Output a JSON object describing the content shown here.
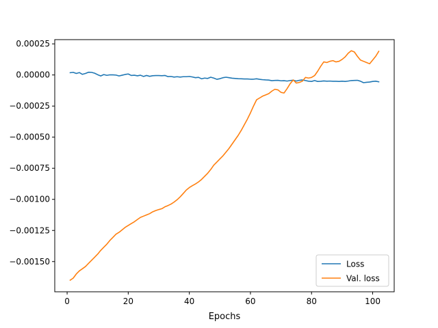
{
  "chart_data": {
    "type": "line",
    "title": "",
    "xlabel": "Epochs",
    "ylabel": "",
    "xlim": [
      -4.05,
      107.05
    ],
    "ylim": [
      -0.001743,
      0.000284
    ],
    "xticks": [
      0,
      20,
      40,
      60,
      80,
      100
    ],
    "yticks": [
      0.00025,
      0.0,
      -0.00025,
      -0.0005,
      -0.00075,
      -0.001,
      -0.00125,
      -0.0015
    ],
    "ytick_labels": [
      "0.00025",
      "0.00000",
      "−0.00025",
      "−0.00050",
      "−0.00075",
      "−0.00100",
      "−0.00125",
      "−0.00150"
    ],
    "xtick_labels": [
      "0",
      "20",
      "40",
      "60",
      "80",
      "100"
    ],
    "grid": false,
    "legend_position": "lower-right",
    "colors": {
      "loss": "#1f77b4",
      "val_loss": "#ff7f0e",
      "axes": "#000000",
      "background": "#ffffff"
    },
    "series": [
      {
        "name": "Loss",
        "color": "#1f77b4",
        "x": [
          1,
          2,
          3,
          4,
          5,
          6,
          7,
          8,
          9,
          10,
          11,
          12,
          13,
          14,
          15,
          16,
          17,
          18,
          19,
          20,
          21,
          22,
          23,
          24,
          25,
          26,
          27,
          28,
          29,
          30,
          31,
          32,
          33,
          34,
          35,
          36,
          37,
          38,
          39,
          40,
          41,
          42,
          43,
          44,
          45,
          46,
          47,
          48,
          49,
          50,
          51,
          52,
          53,
          54,
          55,
          56,
          57,
          58,
          59,
          60,
          61,
          62,
          63,
          64,
          65,
          66,
          67,
          68,
          69,
          70,
          71,
          72,
          73,
          74,
          75,
          76,
          77,
          78,
          79,
          80,
          81,
          82,
          83,
          84,
          85,
          86,
          87,
          88,
          89,
          90,
          91,
          92,
          93,
          94,
          95,
          96,
          97,
          98,
          99,
          100,
          101,
          102
        ],
        "y": [
          1.8e-05,
          2.1e-05,
          1.2e-05,
          1.9e-05,
          5e-06,
          1.2e-05,
          2.2e-05,
          2.1e-05,
          1.4e-05,
          2e-06,
          -8e-06,
          3e-06,
          -3e-06,
          1e-06,
          1e-06,
          -1e-06,
          -8e-06,
          -2e-06,
          4e-06,
          8e-06,
          -4e-06,
          -2e-06,
          -7e-06,
          -2e-06,
          -1.2e-05,
          -4e-06,
          -1.1e-05,
          -6e-06,
          -5e-06,
          -5e-06,
          -6e-06,
          -4e-06,
          -1.3e-05,
          -1.2e-05,
          -1.7e-05,
          -1.4e-05,
          -1.7e-05,
          -1.4e-05,
          -1.4e-05,
          -1.2e-05,
          -1.6e-05,
          -2.2e-05,
          -1.9e-05,
          -3.1e-05,
          -2.5e-05,
          -2.8e-05,
          -1.8e-05,
          -2.5e-05,
          -3.5e-05,
          -3e-05,
          -2.2e-05,
          -1.8e-05,
          -2.2e-05,
          -2.6e-05,
          -2.8e-05,
          -3e-05,
          -3.1e-05,
          -3.2e-05,
          -3.2e-05,
          -3.4e-05,
          -3.4e-05,
          -3.1e-05,
          -3.5e-05,
          -3.8e-05,
          -4e-05,
          -4.1e-05,
          -4.6e-05,
          -4.4e-05,
          -4.3e-05,
          -4.7e-05,
          -4.6e-05,
          -4.9e-05,
          -4.5e-05,
          -4.2e-05,
          -4.9e-05,
          -4.3e-05,
          -4e-05,
          -4.5e-05,
          -5e-05,
          -5.2e-05,
          -4.5e-05,
          -5.2e-05,
          -5.1e-05,
          -4.8e-05,
          -5e-05,
          -4.9e-05,
          -5.1e-05,
          -5.1e-05,
          -5.2e-05,
          -5e-05,
          -5.2e-05,
          -4.9e-05,
          -4.5e-05,
          -4.4e-05,
          -4.3e-05,
          -5e-05,
          -6.2e-05,
          -5.9e-05,
          -5.7e-05,
          -5.2e-05,
          -5e-05,
          -5.5e-05
        ]
      },
      {
        "name": "Val. loss",
        "color": "#ff7f0e",
        "x": [
          1,
          2,
          3,
          4,
          5,
          6,
          7,
          8,
          9,
          10,
          11,
          12,
          13,
          14,
          15,
          16,
          17,
          18,
          19,
          20,
          21,
          22,
          23,
          24,
          25,
          26,
          27,
          28,
          29,
          30,
          31,
          32,
          33,
          34,
          35,
          36,
          37,
          38,
          39,
          40,
          41,
          42,
          43,
          44,
          45,
          46,
          47,
          48,
          49,
          50,
          51,
          52,
          53,
          54,
          55,
          56,
          57,
          58,
          59,
          60,
          61,
          62,
          63,
          64,
          65,
          66,
          67,
          68,
          69,
          70,
          71,
          72,
          73,
          74,
          75,
          76,
          77,
          78,
          79,
          80,
          81,
          82,
          83,
          84,
          85,
          86,
          87,
          88,
          89,
          90,
          91,
          92,
          93,
          94,
          95,
          96,
          97,
          98,
          99,
          100,
          101,
          102
        ],
        "y": [
          -0.00165,
          -0.001633,
          -0.0016,
          -0.001575,
          -0.001558,
          -0.00154,
          -0.001515,
          -0.00149,
          -0.001465,
          -0.00144,
          -0.00141,
          -0.001385,
          -0.00136,
          -0.00133,
          -0.001305,
          -0.00128,
          -0.001265,
          -0.001245,
          -0.001225,
          -0.00121,
          -0.001195,
          -0.00118,
          -0.001162,
          -0.001145,
          -0.001135,
          -0.001125,
          -0.001115,
          -0.0011,
          -0.00109,
          -0.001082,
          -0.001075,
          -0.00106,
          -0.00105,
          -0.001038,
          -0.001022,
          -0.001003,
          -0.00098,
          -0.000953,
          -0.000925,
          -0.000905,
          -0.00089,
          -0.000876,
          -0.00086,
          -0.00084,
          -0.000815,
          -0.00079,
          -0.00076,
          -0.000725,
          -0.0007,
          -0.000675,
          -0.00065,
          -0.00062,
          -0.00059,
          -0.000555,
          -0.00052,
          -0.000485,
          -0.000445,
          -0.0004,
          -0.000355,
          -0.000305,
          -0.00025,
          -0.0002,
          -0.000185,
          -0.00017,
          -0.00016,
          -0.00015,
          -0.00013,
          -0.000115,
          -0.00012,
          -0.00014,
          -0.000145,
          -0.00011,
          -7e-05,
          -4e-05,
          -6.5e-05,
          -6e-05,
          -5e-05,
          -2e-05,
          -2.5e-05,
          -2e-05,
          -5e-06,
          3e-05,
          7e-05,
          0.000105,
          0.0001,
          0.00011,
          0.000115,
          0.000105,
          0.00011,
          0.000125,
          0.000145,
          0.000175,
          0.000195,
          0.000185,
          0.00015,
          0.00012,
          0.00011,
          0.0001,
          9e-05,
          0.00012,
          0.00015,
          0.00019
        ]
      }
    ]
  }
}
